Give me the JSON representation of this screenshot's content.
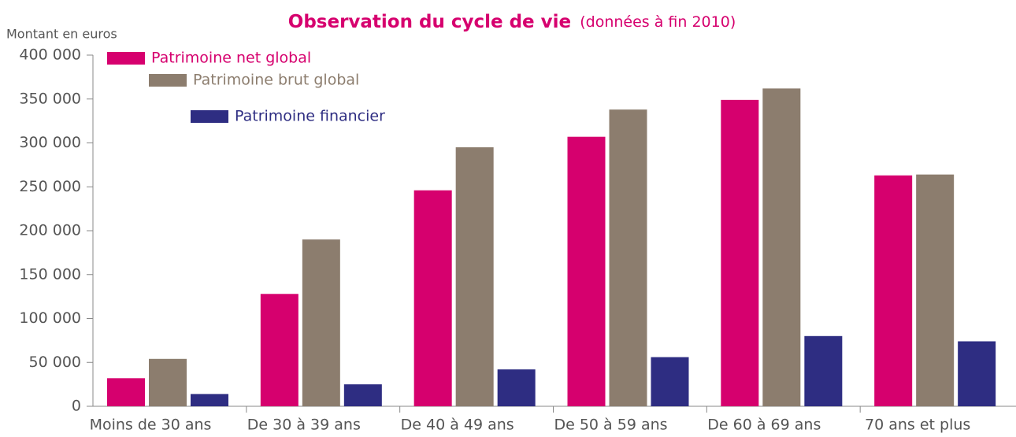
{
  "chart_data": {
    "type": "bar",
    "title": "Observation du cycle de vie",
    "subtitle": "(données à fin 2010)",
    "y_label": "Montant en euros",
    "categories": [
      "Moins de 30 ans",
      "De 30 à 39 ans",
      "De 40 à 49 ans",
      "De 50 à 59 ans",
      "De 60 à 69 ans",
      "70 ans et plus"
    ],
    "series": [
      {
        "name": "Patrimoine net global",
        "color": "#d6006e",
        "values": [
          32000,
          128000,
          246000,
          307000,
          349000,
          263000
        ]
      },
      {
        "name": "Patrimoine brut global",
        "color": "#8c7d6e",
        "values": [
          54000,
          190000,
          295000,
          338000,
          362000,
          264000
        ]
      },
      {
        "name": "Patrimoine financier",
        "color": "#2e2d82",
        "values": [
          14000,
          25000,
          42000,
          56000,
          80000,
          74000
        ]
      }
    ],
    "ylim": [
      0,
      400000
    ],
    "yticks": [
      0,
      {
        "value": 50000,
        "label": "50 000"
      },
      {
        "value": 100000,
        "label": "100 000"
      },
      {
        "value": 150000,
        "label": "150 000"
      },
      {
        "value": 200000,
        "label": "200 000"
      },
      {
        "value": 250000,
        "label": "250 000"
      },
      {
        "value": 300000,
        "label": "300 000"
      },
      {
        "value": 350000,
        "label": "350 000"
      },
      {
        "value": 400000,
        "label": "400 000"
      }
    ],
    "grid": false,
    "legend_position": "top-left"
  }
}
